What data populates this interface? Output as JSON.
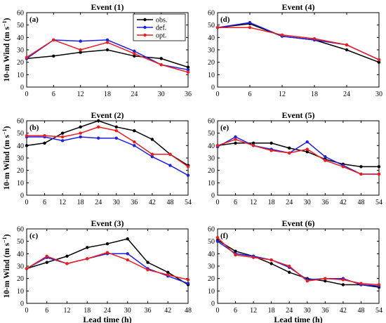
{
  "figure": {
    "shared_ylabel": "10-m Wind (m s",
    "shared_ylabel_sup": "−1",
    "shared_ylabel_close": ")",
    "shared_xlabel": "Lead time (h)"
  },
  "colors": {
    "obs.": "#000000",
    "def.": "#1f1fe0",
    "opt.": "#ee1c1c"
  },
  "legend": [
    {
      "name": "obs.",
      "color": "#000000"
    },
    {
      "name": "def.",
      "color": "#1f1fe0"
    },
    {
      "name": "opt.",
      "color": "#ee1c1c"
    }
  ],
  "chart_data": [
    {
      "type": "line",
      "title": "Event (1)",
      "panel_label": "(a)",
      "x": [
        0,
        6,
        12,
        18,
        24,
        30,
        36
      ],
      "xlim": [
        0,
        36
      ],
      "ylim": [
        0,
        60
      ],
      "xticks": [
        0,
        6,
        12,
        18,
        24,
        30,
        36
      ],
      "yticks": [
        0,
        10,
        20,
        30,
        40,
        50,
        60
      ],
      "ylabel": "10-m Wind (m s⁻¹)",
      "xlabel": "",
      "legend": true,
      "series": [
        {
          "name": "obs.",
          "values": [
            23,
            25,
            28,
            30,
            25,
            23,
            16
          ]
        },
        {
          "name": "def.",
          "values": [
            23,
            38,
            37,
            38,
            29,
            18,
            14
          ]
        },
        {
          "name": "opt.",
          "values": [
            24,
            38,
            30,
            36,
            27,
            18,
            12
          ]
        }
      ]
    },
    {
      "type": "line",
      "title": "Event (4)",
      "panel_label": "(d)",
      "x": [
        0,
        6,
        12,
        18,
        24,
        30
      ],
      "xlim": [
        0,
        30
      ],
      "ylim": [
        0,
        60
      ],
      "xticks": [
        0,
        6,
        12,
        18,
        24,
        30
      ],
      "yticks": [
        0,
        10,
        20,
        30,
        40,
        50,
        60
      ],
      "ylabel": "",
      "xlabel": "",
      "legend": false,
      "series": [
        {
          "name": "obs.",
          "values": [
            48,
            51,
            41,
            38,
            30,
            20
          ]
        },
        {
          "name": "def.",
          "values": [
            48,
            52,
            41,
            38,
            34,
            22
          ]
        },
        {
          "name": "opt.",
          "values": [
            48,
            48,
            42,
            39,
            34,
            22
          ]
        }
      ]
    },
    {
      "type": "line",
      "title": "Event (2)",
      "panel_label": "(b)",
      "x": [
        0,
        6,
        12,
        18,
        24,
        30,
        36,
        42,
        48,
        54
      ],
      "xlim": [
        0,
        54
      ],
      "ylim": [
        0,
        60
      ],
      "xticks": [
        0,
        6,
        12,
        18,
        24,
        30,
        36,
        42,
        48,
        54
      ],
      "yticks": [
        0,
        10,
        20,
        30,
        40,
        50,
        60
      ],
      "ylabel": "10-m Wind (m s⁻¹)",
      "xlabel": "",
      "legend": false,
      "series": [
        {
          "name": "obs.",
          "values": [
            40,
            42,
            50,
            55,
            60,
            55,
            52,
            45,
            33,
            24
          ]
        },
        {
          "name": "def.",
          "values": [
            47,
            47,
            44,
            47,
            46,
            46,
            40,
            31,
            24,
            16
          ]
        },
        {
          "name": "opt.",
          "values": [
            48,
            48,
            47,
            50,
            55,
            52,
            43,
            33,
            33,
            23
          ]
        }
      ]
    },
    {
      "type": "line",
      "title": "Event (5)",
      "panel_label": "(e)",
      "x": [
        0,
        6,
        12,
        18,
        24,
        30,
        36,
        42,
        48,
        54
      ],
      "xlim": [
        0,
        54
      ],
      "ylim": [
        0,
        60
      ],
      "xticks": [
        0,
        6,
        12,
        18,
        24,
        30,
        36,
        42,
        48,
        54
      ],
      "yticks": [
        0,
        10,
        20,
        30,
        40,
        50,
        60
      ],
      "ylabel": "",
      "xlabel": "",
      "legend": false,
      "series": [
        {
          "name": "obs.",
          "values": [
            40,
            42,
            42,
            42,
            38,
            35,
            29,
            25,
            23,
            23
          ]
        },
        {
          "name": "def.",
          "values": [
            39,
            47,
            40,
            37,
            34,
            43,
            31,
            24,
            17,
            17
          ]
        },
        {
          "name": "opt.",
          "values": [
            40,
            45,
            40,
            36,
            34,
            37,
            28,
            23,
            17,
            17
          ]
        }
      ]
    },
    {
      "type": "line",
      "title": "Event (3)",
      "panel_label": "(c)",
      "x": [
        0,
        6,
        12,
        18,
        24,
        30,
        36,
        42,
        48
      ],
      "xlim": [
        0,
        48
      ],
      "ylim": [
        0,
        60
      ],
      "xticks": [
        0,
        6,
        12,
        18,
        24,
        30,
        36,
        42,
        48
      ],
      "yticks": [
        0,
        10,
        20,
        30,
        40,
        50,
        60
      ],
      "ylabel": "10-m Wind (m s⁻¹)",
      "xlabel": "Lead time (h)",
      "legend": false,
      "series": [
        {
          "name": "obs.",
          "values": [
            28,
            33,
            38,
            45,
            48,
            52,
            33,
            25,
            15
          ]
        },
        {
          "name": "def.",
          "values": [
            28,
            37,
            32,
            36,
            40,
            40,
            28,
            22,
            16
          ]
        },
        {
          "name": "opt.",
          "values": [
            28,
            38,
            32,
            36,
            41,
            35,
            27,
            23,
            19
          ]
        }
      ]
    },
    {
      "type": "line",
      "title": "Event (6)",
      "panel_label": "(f)",
      "x": [
        0,
        6,
        12,
        18,
        24,
        30,
        36,
        42,
        48,
        54
      ],
      "xlim": [
        0,
        54
      ],
      "ylim": [
        0,
        60
      ],
      "xticks": [
        0,
        6,
        12,
        18,
        24,
        30,
        36,
        42,
        48,
        54
      ],
      "yticks": [
        0,
        10,
        20,
        30,
        40,
        50,
        60
      ],
      "ylabel": "",
      "xlabel": "Lead time (h)",
      "legend": false,
      "series": [
        {
          "name": "obs.",
          "values": [
            51,
            42,
            38,
            32,
            25,
            20,
            18,
            15,
            15,
            13
          ]
        },
        {
          "name": "def.",
          "values": [
            50,
            40,
            38,
            35,
            29,
            19,
            20,
            20,
            15,
            14
          ]
        },
        {
          "name": "opt.",
          "values": [
            53,
            39,
            37,
            35,
            30,
            18,
            20,
            19,
            16,
            15
          ]
        }
      ]
    }
  ]
}
